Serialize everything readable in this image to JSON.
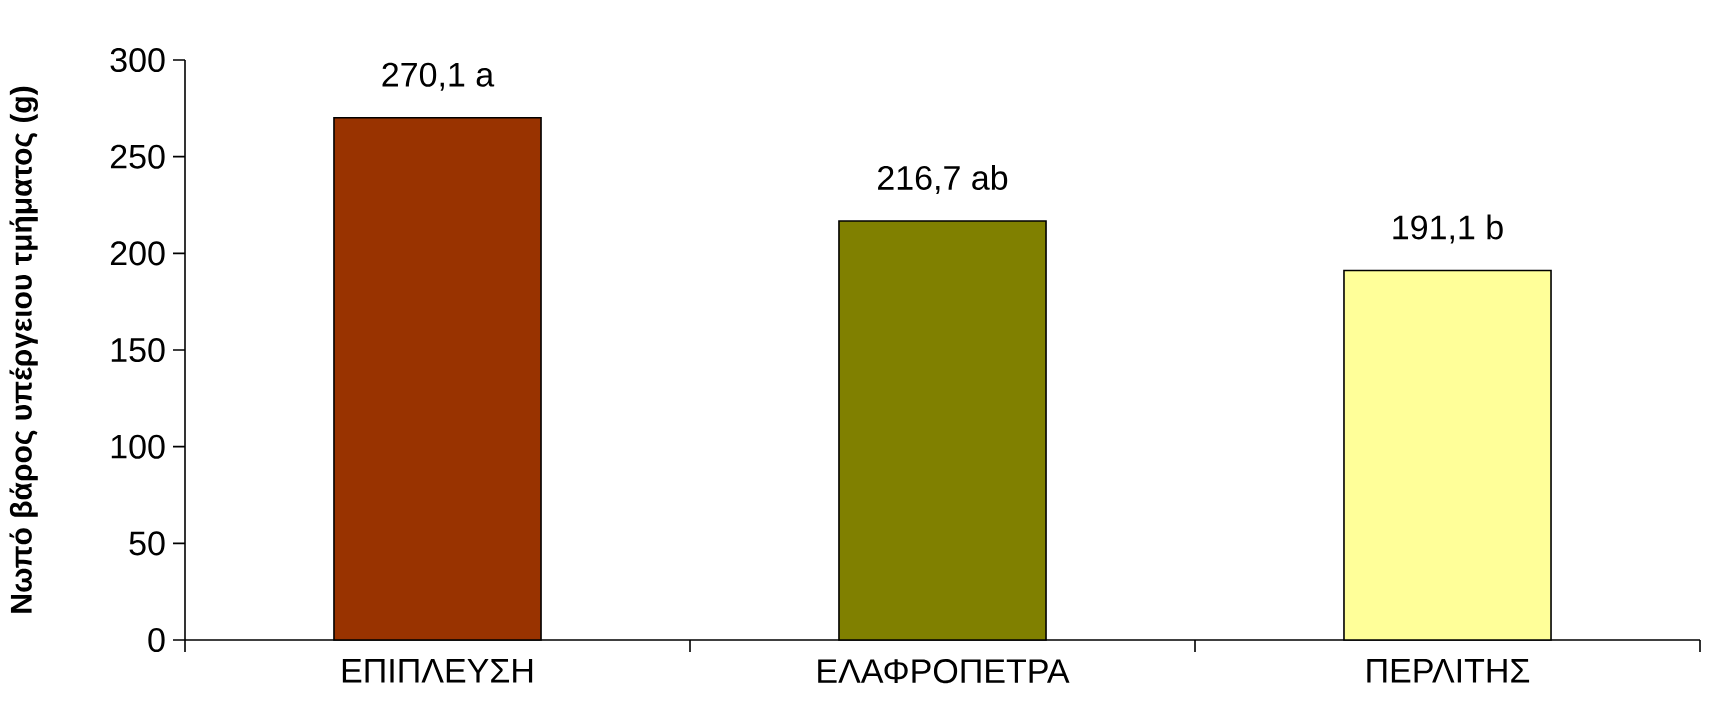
{
  "chart_data": {
    "type": "bar",
    "ylabel": "Νωπό βάρος υπέργειου τμήματος (g)",
    "categories": [
      "ΕΠΙΠΛΕΥΣΗ",
      "ΕΛΑΦΡΟΠΕΤΡΑ",
      "ΠΕΡΛΙΤΗΣ"
    ],
    "values": [
      270.1,
      216.7,
      191.1
    ],
    "colors": [
      "#993300",
      "#808000",
      "#ffff99"
    ],
    "value_labels": [
      "270,1 a",
      "216,7 ab",
      "191,1 b"
    ],
    "ylim": [
      0,
      300
    ],
    "yticks": [
      0,
      50,
      100,
      150,
      200,
      250,
      300
    ],
    "grid": false
  }
}
